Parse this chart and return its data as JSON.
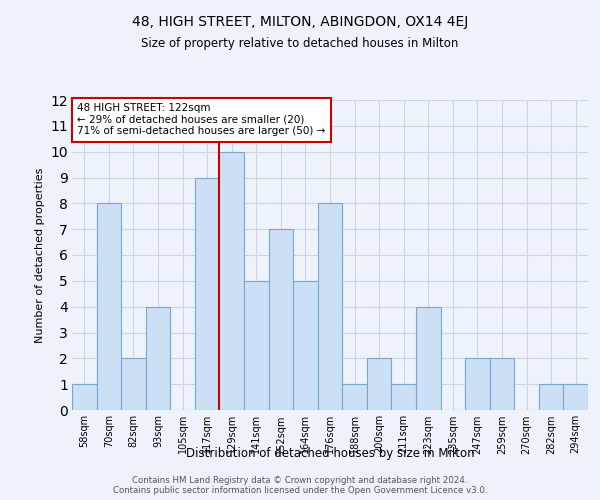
{
  "title_line1": "48, HIGH STREET, MILTON, ABINGDON, OX14 4EJ",
  "title_line2": "Size of property relative to detached houses in Milton",
  "xlabel": "Distribution of detached houses by size in Milton",
  "ylabel": "Number of detached properties",
  "bin_labels": [
    "58sqm",
    "70sqm",
    "82sqm",
    "93sqm",
    "105sqm",
    "117sqm",
    "129sqm",
    "141sqm",
    "152sqm",
    "164sqm",
    "176sqm",
    "188sqm",
    "200sqm",
    "211sqm",
    "223sqm",
    "235sqm",
    "247sqm",
    "259sqm",
    "270sqm",
    "282sqm",
    "294sqm"
  ],
  "bar_heights": [
    1,
    8,
    2,
    4,
    0,
    9,
    10,
    5,
    7,
    5,
    8,
    1,
    2,
    1,
    4,
    0,
    2,
    2,
    0,
    1,
    1
  ],
  "bar_color": "#cce0f5",
  "bar_edgecolor": "#7aa8cc",
  "reference_line_x": 5.5,
  "vline_color": "#cc0000",
  "annotation_text": "48 HIGH STREET: 122sqm\n← 29% of detached houses are smaller (20)\n71% of semi-detached houses are larger (50) →",
  "annotation_box_facecolor": "#ffffff",
  "annotation_box_edgecolor": "#cc0000",
  "ylim": [
    0,
    12
  ],
  "yticks": [
    0,
    1,
    2,
    3,
    4,
    5,
    6,
    7,
    8,
    9,
    10,
    11,
    12
  ],
  "grid_color": "#c8d4e8",
  "background_color": "#eef2fa",
  "footer_line1": "Contains HM Land Registry data © Crown copyright and database right 2024.",
  "footer_line2": "Contains public sector information licensed under the Open Government Licence v3.0."
}
